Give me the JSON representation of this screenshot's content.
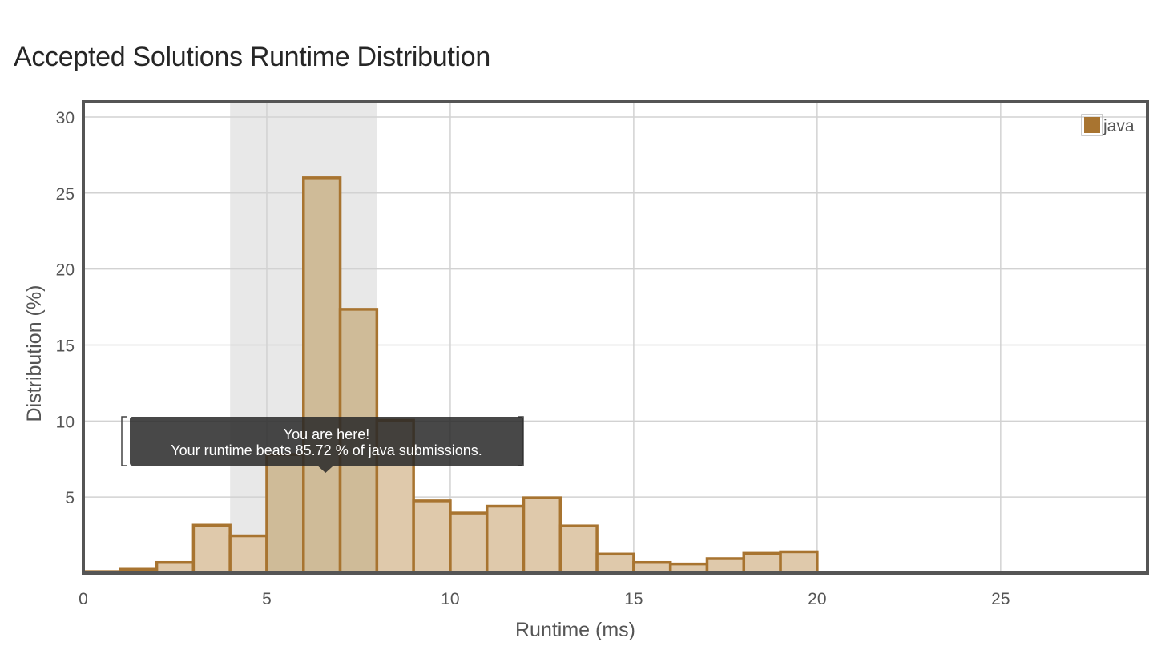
{
  "title": "Accepted Solutions Runtime Distribution",
  "chart_data": {
    "type": "bar",
    "title": "Accepted Solutions Runtime Distribution",
    "xlabel": "Runtime (ms)",
    "ylabel": "Distribution (%)",
    "xlim": [
      0,
      29
    ],
    "ylim": [
      0,
      31
    ],
    "x_ticks": [
      0,
      5,
      10,
      15,
      20,
      25
    ],
    "y_ticks": [
      5,
      10,
      15,
      20,
      25,
      30
    ],
    "grid": true,
    "legend_position": "top-right",
    "bin_width": 1,
    "series": [
      {
        "name": "java",
        "color": "#a87430",
        "bin_starts": [
          0,
          1,
          2,
          3,
          4,
          5,
          6,
          7,
          8,
          9,
          10,
          11,
          12,
          13,
          14,
          15,
          16,
          17,
          18,
          19
        ],
        "values": [
          0.1,
          0.25,
          0.7,
          3.15,
          2.45,
          7.8,
          26.0,
          17.35,
          10.05,
          4.75,
          3.95,
          4.4,
          4.95,
          3.1,
          1.25,
          0.7,
          0.6,
          0.95,
          1.3,
          1.4
        ]
      }
    ],
    "highlight_range": [
      4,
      8
    ],
    "highlight_bins": [
      5,
      6,
      7
    ],
    "annotation": {
      "line1": "You are here!",
      "line2": "Your runtime beats 85.72 % of java submissions.",
      "x": 6.6
    }
  }
}
